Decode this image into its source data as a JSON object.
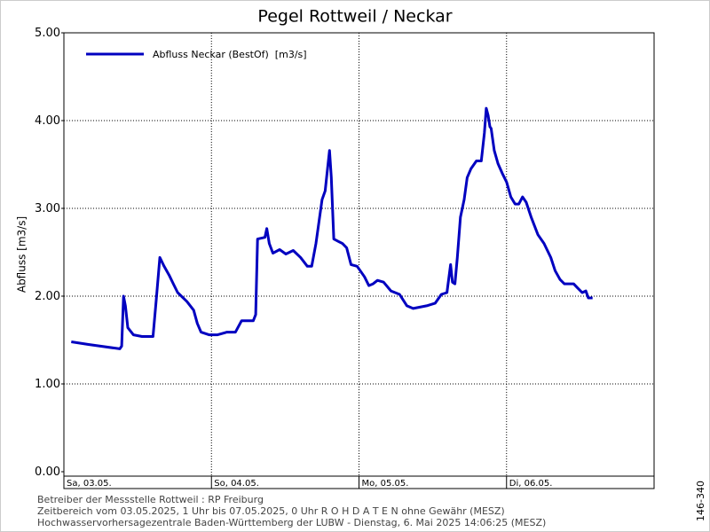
{
  "chart_data": {
    "type": "line",
    "title": "Pegel Rottweil / Neckar",
    "ylabel": "Abfluss [m3/s]",
    "xlim": [
      0,
      96
    ],
    "ylim": [
      0,
      5
    ],
    "xticks": [
      {
        "value": 0,
        "label": "Sa, 03.05."
      },
      {
        "value": 24,
        "label": "So, 04.05."
      },
      {
        "value": 48,
        "label": "Mo, 05.05."
      },
      {
        "value": 72,
        "label": "Di, 06.05."
      }
    ],
    "yticks": [
      {
        "value": 0,
        "label": "0.00"
      },
      {
        "value": 1,
        "label": "1.00"
      },
      {
        "value": 2,
        "label": "2.00"
      },
      {
        "value": 3,
        "label": "3.00"
      },
      {
        "value": 4,
        "label": "4.00"
      },
      {
        "value": 5,
        "label": "5.00"
      }
    ],
    "grid": true,
    "legend": "top-left",
    "x": [
      1.2,
      4.0,
      9.1,
      9.4,
      9.7,
      10.0,
      10.4,
      11.3,
      12.7,
      14.5,
      15.0,
      15.6,
      16.3,
      17.1,
      17.8,
      18.5,
      20.0,
      21.1,
      21.7,
      22.3,
      23.6,
      25.0,
      26.5,
      27.9,
      28.9,
      30.8,
      31.2,
      31.5,
      32.7,
      33.0,
      33.4,
      34.0,
      35.1,
      36.1,
      37.3,
      38.5,
      39.6,
      40.3,
      41.0,
      42.0,
      42.5,
      42.8,
      43.2,
      43.5,
      43.9,
      45.3,
      46.0,
      46.7,
      47.7,
      48.9,
      49.6,
      50.3,
      51.0,
      52.0,
      53.2,
      54.6,
      55.8,
      56.8,
      59.0,
      60.4,
      61.4,
      62.3,
      62.9,
      63.2,
      63.6,
      64.0,
      64.5,
      65.1,
      65.6,
      66.2,
      67.1,
      67.9,
      68.4,
      68.7,
      69.0,
      69.3,
      69.5,
      70.0,
      70.6,
      71.3,
      72.0,
      72.7,
      73.4,
      74.0,
      74.6,
      75.2,
      76.0,
      77.1,
      78.1,
      79.2,
      79.9,
      80.7,
      81.4,
      82.9,
      83.6,
      84.3,
      84.9,
      85.3,
      86.0
    ],
    "series": [
      {
        "name": "Abfluss Neckar (BestOf)  [m3/s]",
        "color": "#0000c0",
        "values": [
          1.48,
          1.45,
          1.4,
          1.43,
          2.0,
          1.89,
          1.64,
          1.56,
          1.54,
          1.54,
          1.94,
          2.44,
          2.34,
          2.24,
          2.14,
          2.04,
          1.94,
          1.84,
          1.69,
          1.59,
          1.56,
          1.56,
          1.59,
          1.59,
          1.72,
          1.72,
          1.79,
          2.65,
          2.67,
          2.77,
          2.6,
          2.49,
          2.53,
          2.48,
          2.52,
          2.44,
          2.34,
          2.34,
          2.6,
          3.1,
          3.2,
          3.4,
          3.66,
          3.35,
          2.65,
          2.6,
          2.55,
          2.36,
          2.34,
          2.22,
          2.12,
          2.14,
          2.18,
          2.16,
          2.06,
          2.02,
          1.89,
          1.86,
          1.89,
          1.92,
          2.02,
          2.04,
          2.36,
          2.16,
          2.14,
          2.44,
          2.9,
          3.1,
          3.35,
          3.45,
          3.54,
          3.54,
          3.86,
          4.14,
          4.06,
          3.93,
          3.91,
          3.66,
          3.51,
          3.4,
          3.3,
          3.13,
          3.05,
          3.05,
          3.13,
          3.07,
          2.9,
          2.7,
          2.6,
          2.44,
          2.29,
          2.19,
          2.14,
          2.14,
          2.09,
          2.04,
          2.06,
          1.98,
          1.98
        ]
      }
    ],
    "footer": [
      "Betreiber der Messstelle Rottweil : RP Freiburg",
      "Zeitbereich vom 03.05.2025, 1 Uhr bis 07.05.2025, 0 Uhr    R O H D A T E N ohne Gewähr (MESZ)",
      "Hochwasservorhersagezentrale Baden-Württemberg der LUBW - Dienstag, 6. Mai 2025 14:06:25 (MESZ)"
    ],
    "side_label": "146-340"
  }
}
